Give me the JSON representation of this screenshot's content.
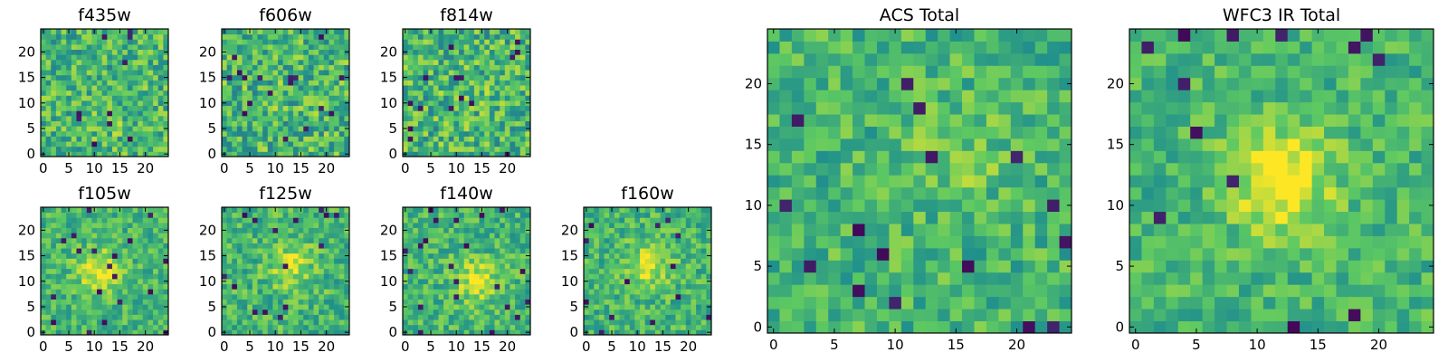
{
  "colors": {
    "colormap": [
      "#440154",
      "#3b528b",
      "#21918c",
      "#5ec962",
      "#fde725"
    ],
    "frame": "#000000",
    "background": "#ffffff"
  },
  "chart_data": [
    {
      "type": "heatmap",
      "title": "f435w",
      "grid_size": 25,
      "xlim": [
        -0.5,
        24.5
      ],
      "ylim": [
        -0.5,
        24.5
      ],
      "xticks": [
        0,
        5,
        10,
        15,
        20
      ],
      "yticks": [
        0,
        5,
        10,
        15,
        20
      ],
      "grid": false,
      "blob": {
        "x": 14,
        "y": 6,
        "strength": 0.05
      },
      "noise": 0.22,
      "seed": 11
    },
    {
      "type": "heatmap",
      "title": "f606w",
      "grid_size": 25,
      "xlim": [
        -0.5,
        24.5
      ],
      "ylim": [
        -0.5,
        24.5
      ],
      "xticks": [
        0,
        5,
        10,
        15,
        20
      ],
      "yticks": [
        0,
        5,
        10,
        15,
        20
      ],
      "grid": false,
      "blob": {
        "x": 12,
        "y": 12,
        "strength": 0.02
      },
      "noise": 0.24,
      "seed": 23
    },
    {
      "type": "heatmap",
      "title": "f814w",
      "grid_size": 25,
      "xlim": [
        -0.5,
        24.5
      ],
      "ylim": [
        -0.5,
        24.5
      ],
      "xticks": [
        0,
        5,
        10,
        15,
        20
      ],
      "yticks": [
        0,
        5,
        10,
        15,
        20
      ],
      "grid": false,
      "blob": {
        "x": 12,
        "y": 12,
        "strength": 0.04
      },
      "noise": 0.24,
      "seed": 37
    },
    {
      "type": "heatmap",
      "title": "f105w",
      "grid_size": 25,
      "xlim": [
        -0.5,
        24.5
      ],
      "ylim": [
        -0.5,
        24.5
      ],
      "xticks": [
        0,
        5,
        10,
        15,
        20
      ],
      "yticks": [
        0,
        5,
        10,
        15,
        20
      ],
      "grid": false,
      "blob": {
        "x": 11,
        "y": 12,
        "strength": 0.3
      },
      "noise": 0.16,
      "seed": 41
    },
    {
      "type": "heatmap",
      "title": "f125w",
      "grid_size": 25,
      "xlim": [
        -0.5,
        24.5
      ],
      "ylim": [
        -0.5,
        24.5
      ],
      "xticks": [
        0,
        5,
        10,
        15,
        20
      ],
      "yticks": [
        0,
        5,
        10,
        15,
        20
      ],
      "grid": false,
      "blob": {
        "x": 13,
        "y": 13,
        "strength": 0.25
      },
      "noise": 0.18,
      "seed": 53
    },
    {
      "type": "heatmap",
      "title": "f140w",
      "grid_size": 25,
      "xlim": [
        -0.5,
        24.5
      ],
      "ylim": [
        -0.5,
        24.5
      ],
      "xticks": [
        0,
        5,
        10,
        15,
        20
      ],
      "yticks": [
        0,
        5,
        10,
        15,
        20
      ],
      "grid": false,
      "blob": {
        "x": 14,
        "y": 10,
        "strength": 0.28
      },
      "noise": 0.17,
      "seed": 67
    },
    {
      "type": "heatmap",
      "title": "f160w",
      "grid_size": 25,
      "xlim": [
        -0.5,
        24.5
      ],
      "ylim": [
        -0.5,
        24.5
      ],
      "xticks": [
        0,
        5,
        10,
        15,
        20
      ],
      "yticks": [
        0,
        5,
        10,
        15,
        20
      ],
      "grid": false,
      "blob": {
        "x": 12,
        "y": 13,
        "strength": 0.28
      },
      "noise": 0.17,
      "seed": 79
    },
    {
      "type": "heatmap",
      "title": "ACS Total",
      "grid_size": 25,
      "xlim": [
        -0.5,
        24.5
      ],
      "ylim": [
        -0.5,
        24.5
      ],
      "xticks": [
        0,
        5,
        10,
        15,
        20
      ],
      "yticks": [
        0,
        5,
        10,
        15,
        20
      ],
      "grid": false,
      "blob": {
        "x": 15,
        "y": 14,
        "strength": 0.1
      },
      "noise": 0.17,
      "seed": 83
    },
    {
      "type": "heatmap",
      "title": "WFC3 IR Total",
      "grid_size": 25,
      "xlim": [
        -0.5,
        24.5
      ],
      "ylim": [
        -0.5,
        24.5
      ],
      "xticks": [
        0,
        5,
        10,
        15,
        20
      ],
      "yticks": [
        0,
        5,
        10,
        15,
        20
      ],
      "grid": false,
      "blob": {
        "x": 12,
        "y": 12,
        "strength": 0.38
      },
      "noise": 0.15,
      "seed": 97
    }
  ]
}
